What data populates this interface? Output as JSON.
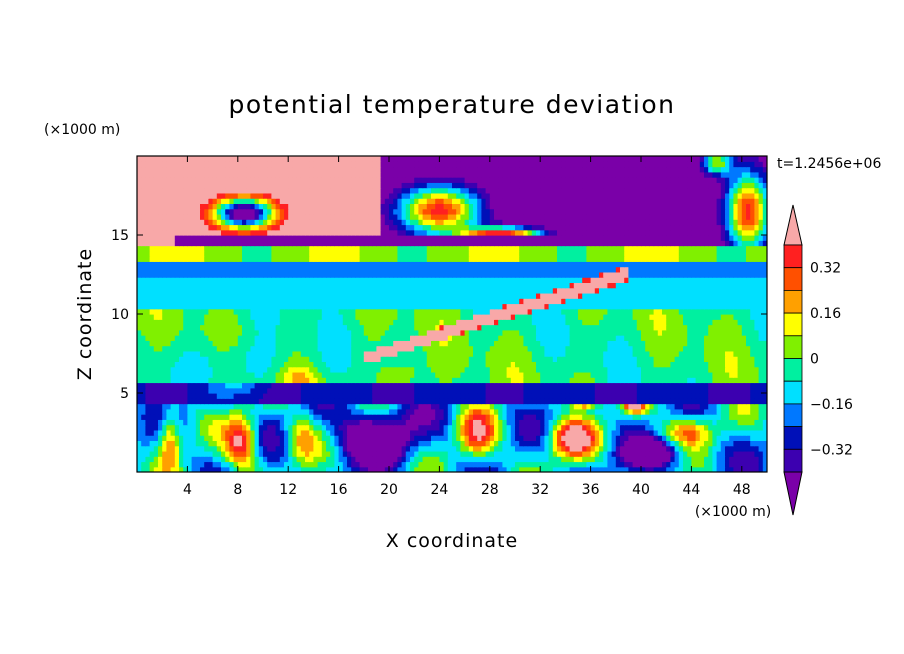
{
  "chart_data": {
    "type": "heatmap",
    "title": "potential temperature deviation",
    "xlabel": "X coordinate",
    "ylabel": "Z coordinate",
    "x_unit": "(×1000 m)",
    "y_unit": "(×1000 m)",
    "time_label": "t=1.2456e+06",
    "xlim": [
      0,
      50
    ],
    "ylim": [
      0,
      20
    ],
    "x_ticks": [
      4,
      8,
      12,
      16,
      20,
      24,
      28,
      32,
      36,
      40,
      44,
      48
    ],
    "y_ticks": [
      5,
      10,
      15
    ],
    "colorbar": {
      "levels": [
        -0.4,
        -0.32,
        -0.24,
        -0.16,
        -0.08,
        0,
        0.08,
        0.16,
        0.24,
        0.32,
        0.4
      ],
      "labeled_values": [
        0.32,
        0.16,
        0,
        -0.16,
        -0.32
      ],
      "labels": [
        "0.32",
        "0.16",
        "0",
        "−0.16",
        "−0.32"
      ],
      "colors_low_to_high": [
        "#7a00a8",
        "#3c00b0",
        "#0010b8",
        "#0078ff",
        "#00e0ff",
        "#00f0a0",
        "#80f000",
        "#ffff00",
        "#ffa000",
        "#ff5000",
        "#ff2020",
        "#f8a8a8"
      ]
    },
    "field_regions": [
      {
        "name": "upper-left pink",
        "x": [
          0,
          20
        ],
        "z": [
          14,
          20
        ],
        "class": 11
      },
      {
        "name": "upper-right purple",
        "x": [
          20,
          50
        ],
        "z": [
          15,
          20
        ],
        "class": 0
      },
      {
        "name": "tropopause purple band",
        "x": [
          3,
          33
        ],
        "z": [
          14,
          15
        ],
        "class": 0
      },
      {
        "name": "cyan band",
        "x": [
          0,
          50
        ],
        "z": [
          10,
          14
        ],
        "class": 4
      },
      {
        "name": "green band",
        "x": [
          0,
          50
        ],
        "z": [
          5.5,
          10
        ],
        "class": 6
      },
      {
        "name": "tilted pink streak",
        "x": [
          18,
          39
        ],
        "z": [
          7,
          13
        ],
        "class": 11
      },
      {
        "name": "low purple layer",
        "x": [
          0,
          50
        ],
        "z": [
          4.5,
          5.5
        ],
        "class": 1
      },
      {
        "name": "boundary layer mix",
        "x": [
          0,
          50
        ],
        "z": [
          0,
          4.5
        ],
        "class": 7
      }
    ]
  }
}
